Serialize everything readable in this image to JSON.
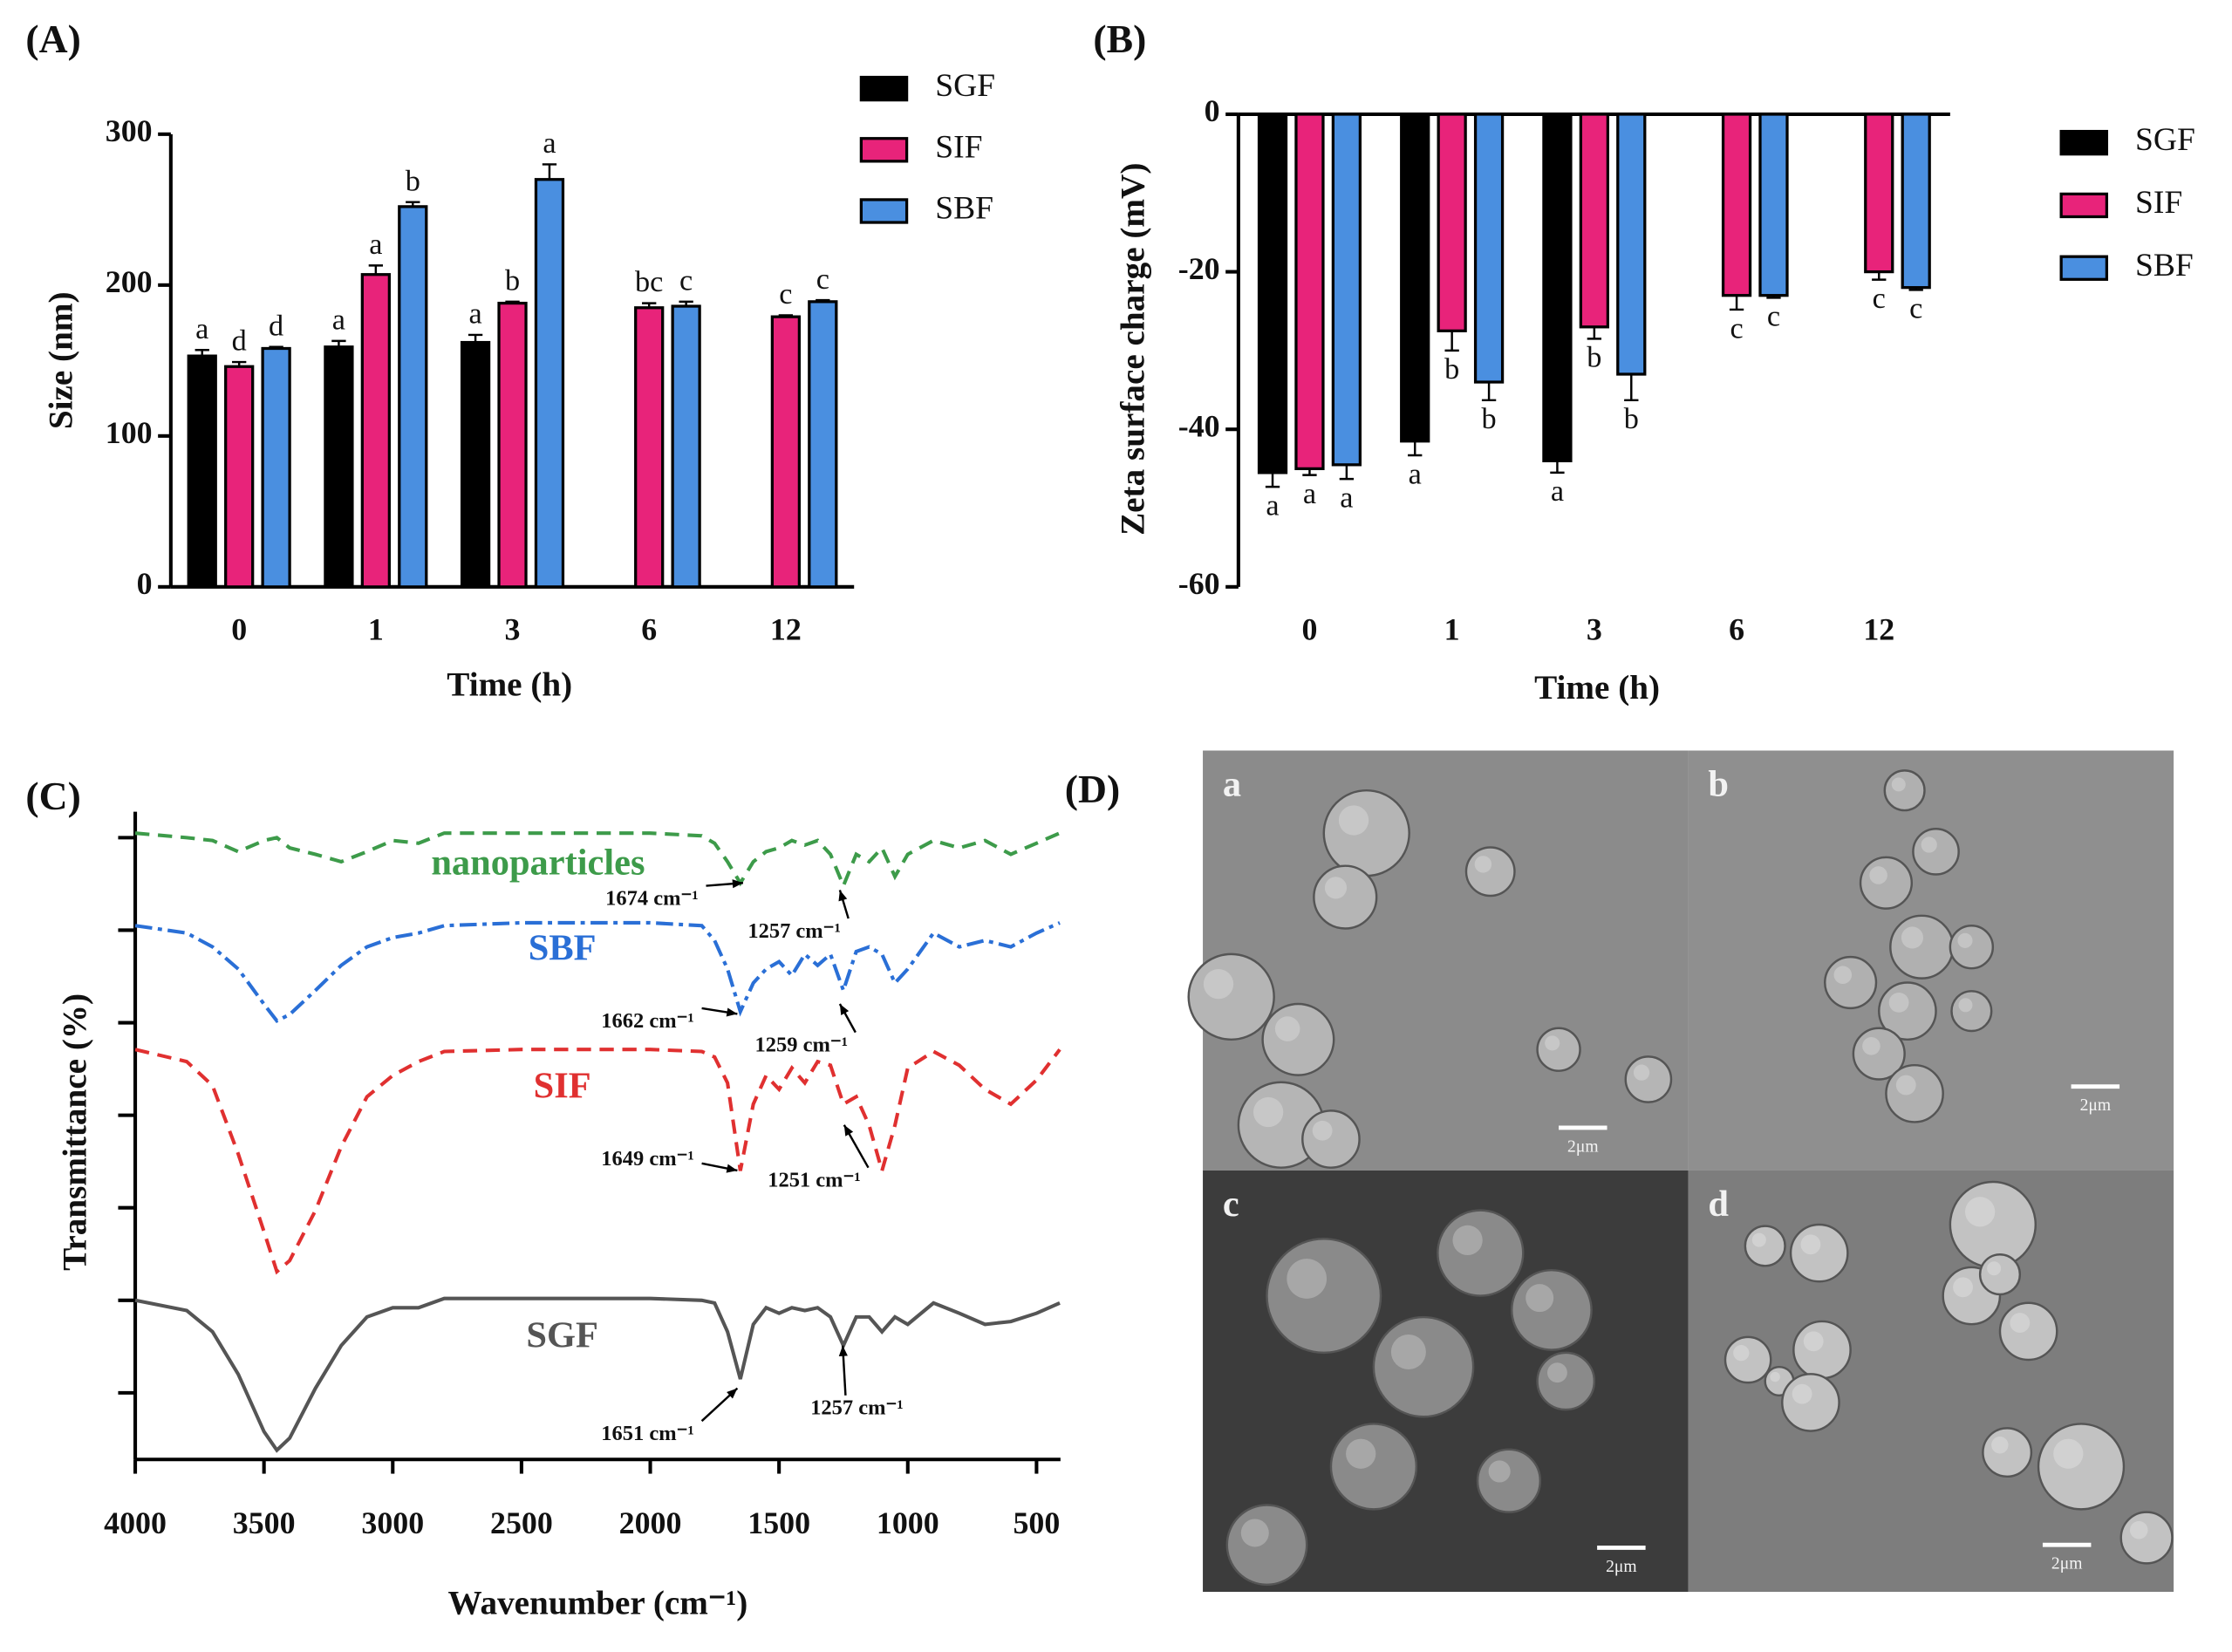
{
  "chart_data": [
    {
      "type": "bar",
      "panel": "(A)",
      "x_label": "Time (h)",
      "y_label": "Size (nm)",
      "categories": [
        "0",
        "1",
        "3",
        "6",
        "12"
      ],
      "series": [
        {
          "name": "SGF",
          "color": "#000000",
          "values": [
            153,
            159,
            162,
            null,
            null
          ],
          "errors": [
            4,
            4,
            5,
            null,
            null
          ],
          "letters": [
            "a",
            "a",
            "a",
            null,
            null
          ]
        },
        {
          "name": "SIF",
          "color": "#e8237a",
          "values": [
            146,
            207,
            188,
            185,
            179
          ],
          "errors": [
            3,
            6,
            1,
            3,
            1
          ],
          "letters": [
            "d",
            "a",
            "b",
            "bc",
            "c"
          ]
        },
        {
          "name": "SBF",
          "color": "#4a8fe0",
          "values": [
            158,
            252,
            270,
            186,
            189
          ],
          "errors": [
            1,
            3,
            10,
            3,
            1
          ],
          "letters": [
            "d",
            "b",
            "a",
            "c",
            "c"
          ]
        }
      ],
      "ylim": [
        0,
        300
      ],
      "yticks": [
        0,
        100,
        200,
        300
      ],
      "legend": "right"
    },
    {
      "type": "bar",
      "panel": "(B)",
      "x_label": "Time (h)",
      "y_label": "Zeta surface charge (mV)",
      "categories": [
        "0",
        "1",
        "3",
        "6",
        "12"
      ],
      "series": [
        {
          "name": "SGF",
          "color": "#000000",
          "values": [
            -45.5,
            -41.5,
            -44,
            null,
            null
          ],
          "errors": [
            1.8,
            1.8,
            1.5,
            null,
            null
          ],
          "letters": [
            "a",
            "a",
            "a",
            null,
            null
          ]
        },
        {
          "name": "SIF",
          "color": "#e8237a",
          "values": [
            -45,
            -27.5,
            -27,
            -23,
            -20
          ],
          "errors": [
            0.8,
            2.5,
            1.5,
            1.8,
            1
          ],
          "letters": [
            "a",
            "b",
            "b",
            "c",
            "c"
          ]
        },
        {
          "name": "SBF",
          "color": "#4a8fe0",
          "values": [
            -44.5,
            -34,
            -33,
            -23,
            -22
          ],
          "errors": [
            1.8,
            2.3,
            3.3,
            0.3,
            0.3
          ],
          "letters": [
            "a",
            "b",
            "b",
            "c",
            "c"
          ]
        }
      ],
      "ylim": [
        -60,
        0
      ],
      "yticks": [
        0,
        -20,
        -40,
        -60
      ],
      "legend": "right"
    },
    {
      "type": "line",
      "panel": "(C)",
      "x_label": "Wavenumber (cm⁻¹)",
      "y_label": "Transmittance (%)",
      "x": [
        4000,
        3800,
        3700,
        3600,
        3500,
        3450,
        3400,
        3300,
        3200,
        3100,
        3000,
        2900,
        2800,
        2500,
        2000,
        1800,
        1750,
        1700,
        1650,
        1600,
        1550,
        1500,
        1450,
        1400,
        1350,
        1300,
        1250,
        1200,
        1150,
        1100,
        1050,
        1000,
        900,
        800,
        700,
        600,
        500,
        410
      ],
      "series": [
        {
          "name": "nanoparticles",
          "color": "#3d9b4a",
          "line_style": "dashed",
          "values": [
            7.05,
            7.0,
            6.97,
            6.85,
            6.97,
            7.0,
            6.89,
            6.82,
            6.74,
            6.85,
            6.97,
            6.94,
            7.05,
            7.05,
            7.05,
            7.02,
            6.94,
            6.74,
            6.51,
            6.74,
            6.85,
            6.89,
            6.97,
            6.92,
            6.97,
            6.82,
            6.48,
            6.82,
            6.74,
            6.89,
            6.58,
            6.82,
            6.97,
            6.89,
            6.97,
            6.82,
            6.94,
            7.05
          ]
        },
        {
          "name": "SBF",
          "color": "#2a6fd6",
          "line_style": "dashdot",
          "values": [
            6.05,
            5.97,
            5.82,
            5.58,
            5.2,
            5.02,
            5.09,
            5.35,
            5.62,
            5.82,
            5.92,
            5.97,
            6.05,
            6.08,
            6.08,
            6.05,
            5.89,
            5.58,
            5.12,
            5.43,
            5.58,
            5.66,
            5.51,
            5.74,
            5.62,
            5.74,
            5.35,
            5.77,
            5.82,
            5.74,
            5.43,
            5.58,
            5.97,
            5.82,
            5.89,
            5.82,
            5.97,
            6.08
          ]
        },
        {
          "name": "SIF",
          "color": "#e03030",
          "line_style": "dashed",
          "values": [
            4.71,
            4.58,
            4.32,
            3.58,
            2.74,
            2.31,
            2.43,
            2.97,
            3.66,
            4.2,
            4.43,
            4.58,
            4.69,
            4.71,
            4.71,
            4.69,
            4.63,
            4.35,
            3.4,
            4.12,
            4.43,
            4.28,
            4.51,
            4.35,
            4.58,
            4.54,
            4.12,
            4.2,
            3.89,
            3.4,
            3.89,
            4.51,
            4.69,
            4.54,
            4.28,
            4.12,
            4.38,
            4.71
          ]
        },
        {
          "name": "SGF",
          "color": "#555555",
          "line_style": "solid",
          "values": [
            2.0,
            1.89,
            1.66,
            1.2,
            0.58,
            0.38,
            0.51,
            1.05,
            1.51,
            1.82,
            1.92,
            1.92,
            2.02,
            2.02,
            2.02,
            2.0,
            1.97,
            1.66,
            1.15,
            1.74,
            1.92,
            1.86,
            1.92,
            1.89,
            1.92,
            1.82,
            1.51,
            1.82,
            1.82,
            1.66,
            1.82,
            1.74,
            1.97,
            1.86,
            1.74,
            1.77,
            1.86,
            1.97
          ]
        }
      ],
      "xlim": [
        4000,
        407
      ],
      "xticks": [
        4000,
        3500,
        3000,
        2500,
        2000,
        1500,
        1000,
        500
      ],
      "ylim": [
        0.28,
        7.28
      ],
      "yticks": [
        1,
        2,
        3,
        4,
        5,
        6,
        7
      ],
      "ytick_labels": false,
      "annotations": [
        "1674 cm⁻¹",
        "1257 cm⁻¹",
        "1662 cm⁻¹",
        "1259 cm⁻¹",
        "1649 cm⁻¹",
        "1251 cm⁻¹",
        "1651 cm⁻¹",
        "1257 cm⁻¹"
      ]
    }
  ],
  "sem_images": {
    "panel": "(D)",
    "tiles": [
      {
        "label": "a",
        "scale_bar": "2μm"
      },
      {
        "label": "b",
        "scale_bar": "2μm"
      },
      {
        "label": "c",
        "scale_bar": "2μm"
      },
      {
        "label": "d",
        "scale_bar": "2μm"
      }
    ]
  }
}
